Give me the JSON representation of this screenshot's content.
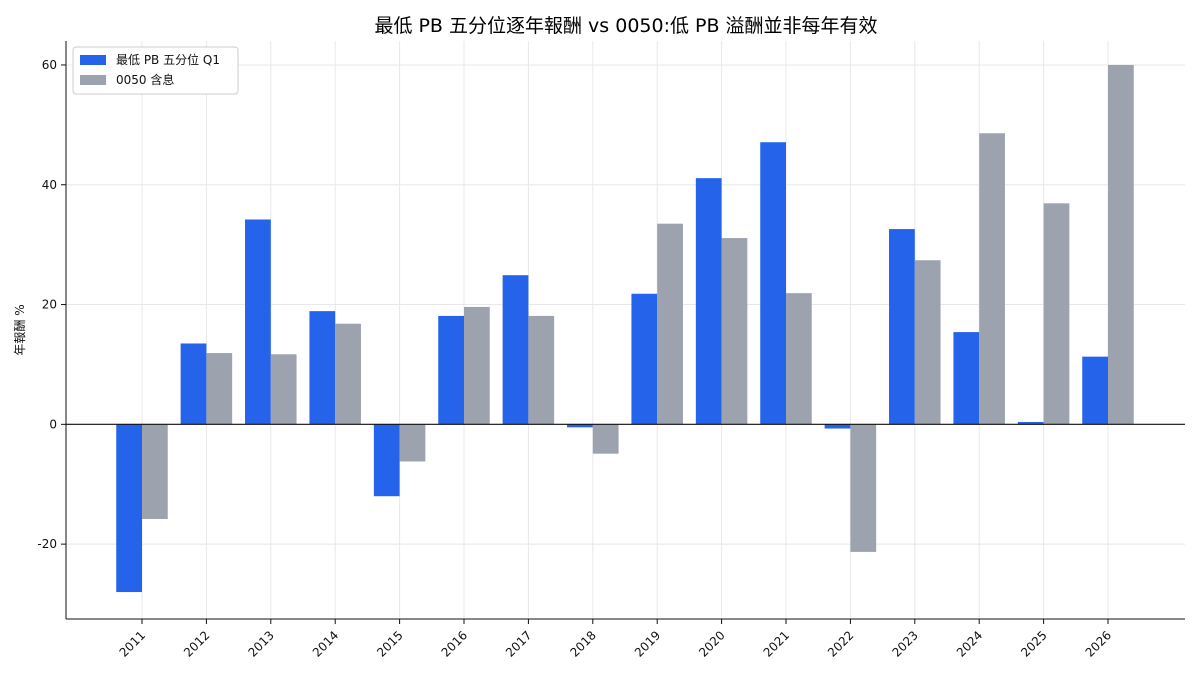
{
  "chart_data": {
    "type": "bar",
    "title": "最低 PB 五分位逐年報酬 vs 0050:低 PB 溢酬並非每年有效",
    "xlabel": "",
    "ylabel": "年報酬 %",
    "categories": [
      "2011",
      "2012",
      "2013",
      "2014",
      "2015",
      "2016",
      "2017",
      "2018",
      "2019",
      "2020",
      "2021",
      "2022",
      "2023",
      "2024",
      "2025",
      "2026"
    ],
    "series": [
      {
        "name": "最低 PB 五分位 Q1",
        "color": "#2563eb",
        "values": [
          -28.0,
          13.5,
          34.2,
          18.9,
          -12.0,
          18.1,
          24.9,
          -0.5,
          21.8,
          41.1,
          47.1,
          -0.7,
          32.6,
          15.4,
          0.4,
          11.3
        ]
      },
      {
        "name": "0050 含息",
        "color": "#9ca3af",
        "values": [
          -15.8,
          11.9,
          11.7,
          16.8,
          -6.2,
          19.6,
          18.1,
          -4.9,
          33.5,
          31.1,
          21.9,
          -21.3,
          27.4,
          48.6,
          36.9,
          60.0
        ]
      }
    ],
    "yticks": [
      -20,
      0,
      20,
      40,
      60
    ],
    "ylim": [
      -32.5,
      64.0
    ],
    "grid": true,
    "legend_position": "top-left"
  }
}
